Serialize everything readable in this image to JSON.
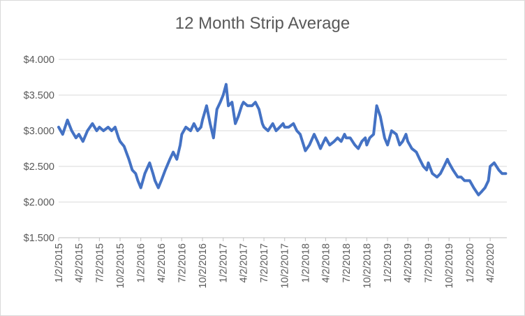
{
  "chart_data": {
    "type": "line",
    "title": "12 Month Strip Average",
    "xlabel": "",
    "ylabel": "",
    "ylim": [
      1.5,
      4.0
    ],
    "yticks": [
      "$1.500",
      "$2.000",
      "$2.500",
      "$3.000",
      "$3.500",
      "$4.000"
    ],
    "yticks_values": [
      1.5,
      2.0,
      2.5,
      3.0,
      3.5,
      4.0
    ],
    "xticks": [
      "1/2/2015",
      "4/2/2015",
      "7/2/2015",
      "10/2/2015",
      "1/2/2016",
      "4/2/2016",
      "7/2/2016",
      "10/2/2016",
      "1/2/2017",
      "4/2/2017",
      "7/2/2017",
      "10/2/2017",
      "1/2/2018",
      "4/2/2018",
      "7/2/2018",
      "10/2/2018",
      "1/2/2019",
      "4/2/2019",
      "7/2/2019",
      "10/2/2019",
      "1/2/2020",
      "4/2/2020"
    ],
    "grid": true,
    "legend": "none",
    "line_color": "#4472C4",
    "series": [
      {
        "x": [
          "1/2/2015",
          "1/20/2015",
          "2/10/2015",
          "3/1/2015",
          "3/20/2015",
          "4/2/2015",
          "4/20/2015",
          "5/10/2015",
          "6/1/2015",
          "6/20/2015",
          "7/2/2015",
          "7/20/2015",
          "8/10/2015",
          "8/25/2015",
          "9/10/2015",
          "9/25/2015",
          "10/2/2015",
          "10/20/2015",
          "11/10/2015",
          "11/25/2015",
          "12/10/2015",
          "12/20/2015",
          "1/2/2016",
          "1/20/2016",
          "2/10/2016",
          "2/25/2016",
          "3/5/2016",
          "3/20/2016",
          "4/2/2016",
          "4/20/2016",
          "5/10/2016",
          "5/25/2016",
          "6/10/2016",
          "6/25/2016",
          "7/2/2016",
          "7/20/2016",
          "8/10/2016",
          "8/25/2016",
          "9/10/2016",
          "9/25/2016",
          "10/2/2016",
          "10/20/2016",
          "11/5/2016",
          "11/20/2016",
          "12/5/2016",
          "12/20/2016",
          "1/2/2017",
          "1/15/2017",
          "1/25/2017",
          "2/10/2017",
          "2/25/2017",
          "3/10/2017",
          "3/25/2017",
          "4/2/2017",
          "4/20/2017",
          "5/10/2017",
          "5/25/2017",
          "6/10/2017",
          "6/25/2017",
          "7/2/2017",
          "7/20/2017",
          "8/10/2017",
          "8/25/2017",
          "9/10/2017",
          "9/25/2017",
          "10/2/2017",
          "10/20/2017",
          "11/10/2017",
          "11/25/2017",
          "12/10/2017",
          "12/20/2017",
          "1/2/2018",
          "1/20/2018",
          "2/10/2018",
          "2/25/2018",
          "3/10/2018",
          "3/25/2018",
          "4/2/2018",
          "4/20/2018",
          "5/10/2018",
          "5/25/2018",
          "6/10/2018",
          "6/25/2018",
          "7/2/2018",
          "7/20/2018",
          "8/10/2018",
          "8/25/2018",
          "9/10/2018",
          "9/25/2018",
          "10/2/2018",
          "10/15/2018",
          "11/1/2018",
          "11/15/2018",
          "12/1/2018",
          "12/20/2018",
          "1/2/2019",
          "1/20/2019",
          "2/10/2019",
          "2/25/2019",
          "3/10/2019",
          "3/25/2019",
          "4/2/2019",
          "4/20/2019",
          "5/10/2019",
          "5/25/2019",
          "6/10/2019",
          "6/25/2019",
          "7/2/2019",
          "7/20/2019",
          "8/10/2019",
          "8/25/2019",
          "9/10/2019",
          "9/25/2019",
          "10/2/2019",
          "10/20/2019",
          "11/10/2019",
          "11/25/2019",
          "12/10/2019",
          "12/20/2019",
          "1/2/2020",
          "1/20/2020",
          "2/10/2020",
          "2/25/2020",
          "3/10/2020",
          "3/25/2020",
          "4/2/2020",
          "4/20/2020",
          "5/10/2020",
          "5/25/2020",
          "6/10/2020"
        ],
        "values": [
          3.05,
          2.95,
          3.15,
          3.0,
          2.9,
          2.95,
          2.85,
          3.0,
          3.1,
          3.0,
          3.05,
          3.0,
          3.05,
          3.0,
          3.05,
          2.9,
          2.85,
          2.78,
          2.6,
          2.45,
          2.4,
          2.3,
          2.2,
          2.4,
          2.55,
          2.4,
          2.3,
          2.2,
          2.3,
          2.45,
          2.6,
          2.7,
          2.6,
          2.8,
          2.95,
          3.05,
          3.0,
          3.1,
          3.0,
          3.05,
          3.15,
          3.35,
          3.1,
          2.9,
          3.3,
          3.4,
          3.5,
          3.65,
          3.35,
          3.4,
          3.1,
          3.2,
          3.35,
          3.4,
          3.35,
          3.35,
          3.4,
          3.3,
          3.1,
          3.05,
          3.0,
          3.1,
          3.0,
          3.05,
          3.1,
          3.05,
          3.05,
          3.1,
          3.0,
          2.95,
          2.85,
          2.72,
          2.8,
          2.95,
          2.85,
          2.75,
          2.85,
          2.9,
          2.8,
          2.85,
          2.9,
          2.85,
          2.95,
          2.9,
          2.9,
          2.8,
          2.75,
          2.85,
          2.9,
          2.8,
          2.9,
          2.95,
          3.35,
          3.2,
          2.9,
          2.8,
          3.0,
          2.95,
          2.8,
          2.85,
          2.95,
          2.85,
          2.75,
          2.7,
          2.6,
          2.5,
          2.45,
          2.55,
          2.4,
          2.35,
          2.4,
          2.5,
          2.6,
          2.55,
          2.45,
          2.35,
          2.35,
          2.3,
          2.3,
          2.3,
          2.2,
          2.1,
          2.15,
          2.2,
          2.3,
          2.5,
          2.55,
          2.45,
          2.4,
          2.4
        ]
      }
    ]
  }
}
